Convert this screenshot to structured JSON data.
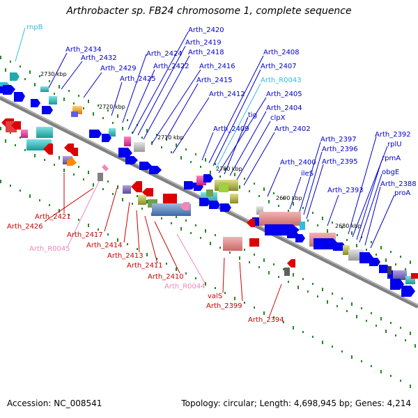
{
  "title": "Arthrobacter sp. FB24 chromosome 1, complete sequence",
  "footer": {
    "accession": "Accession: NC_008541",
    "summary": "Topology: circular; Length: 4,698,945 bp; Genes: 4,214"
  },
  "colors": {
    "forward_label": "#0000cc",
    "reverse_label": "#cc0000",
    "rna_forward": "#33bbdd",
    "rna_reverse": "#ee88bb",
    "backbone": "#808080",
    "ticks": "#228822"
  },
  "scale_labels": [
    "2730 kbp",
    "2720 kbp",
    "2710 kbp",
    "2700 kbp",
    "2690 kbp",
    "2680 kbp"
  ],
  "genes_above": [
    "rnpB",
    "Arth_2434",
    "Arth_2432",
    "Arth_2429",
    "Arth_2425",
    "Arth_2424",
    "Arth_2422",
    "Arth_2420",
    "Arth_2419",
    "Arth_2418",
    "Arth_2416",
    "Arth_2415",
    "Arth_2412",
    "Arth_2409",
    "Arth_2408",
    "Arth_2407",
    "Arth_R0043",
    "Arth_2405",
    "tig",
    "Arth_2404",
    "clpX",
    "Arth_2402",
    "Arth_2400",
    "ileS",
    "Arth_2397",
    "Arth_2396",
    "Arth_2395",
    "Arth_2393",
    "Arth_2392",
    "rplU",
    "rpmA",
    "obgE",
    "Arth_2388",
    "proA"
  ],
  "genes_below": [
    "Arth_2421",
    "Arth_2426",
    "Arth_R0045",
    "Arth_2417",
    "Arth_2414",
    "Arth_2413",
    "Arth_2411",
    "Arth_2410",
    "Arth_R0044",
    "valS",
    "Arth_2399",
    "Arth_2394"
  ]
}
